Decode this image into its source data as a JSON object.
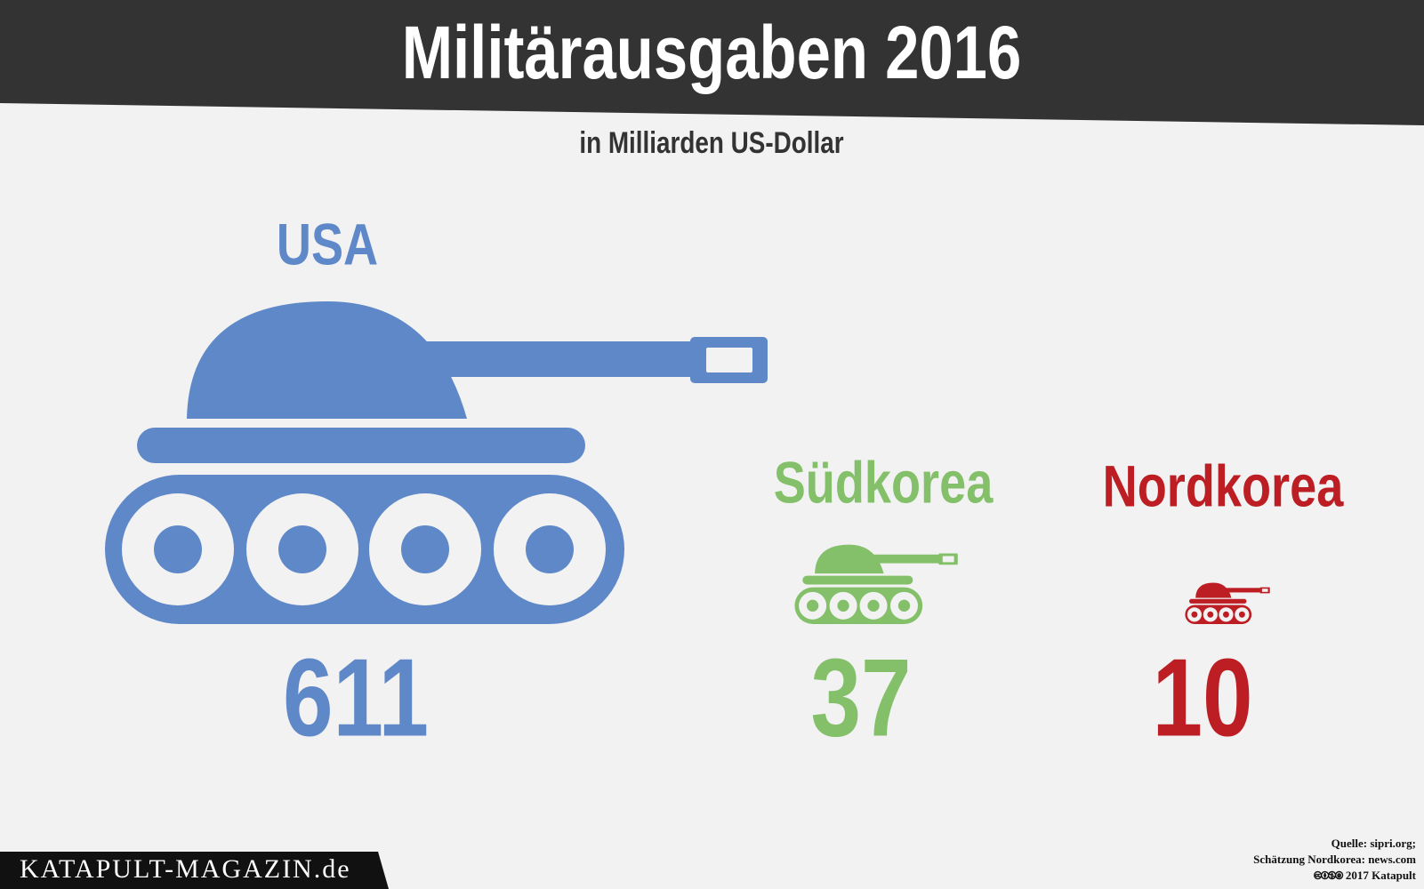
{
  "chart_data": {
    "type": "pictogram",
    "title": "Militärausgaben 2016",
    "subtitle": "in Milliarden US-Dollar",
    "categories": [
      "USA",
      "Südkorea",
      "Nordkorea"
    ],
    "values": [
      611,
      37,
      10
    ],
    "colors": [
      "#5f88c9",
      "#84c06a",
      "#bc1e24"
    ]
  },
  "footer": {
    "brand": "KATAPULT-MAGAZIN.de",
    "source": "Quelle: sipri.org;",
    "estimate": "Schätzung Nordkorea: news.com",
    "license": "🅭🅯🄏🄍 2017 Katapult"
  }
}
